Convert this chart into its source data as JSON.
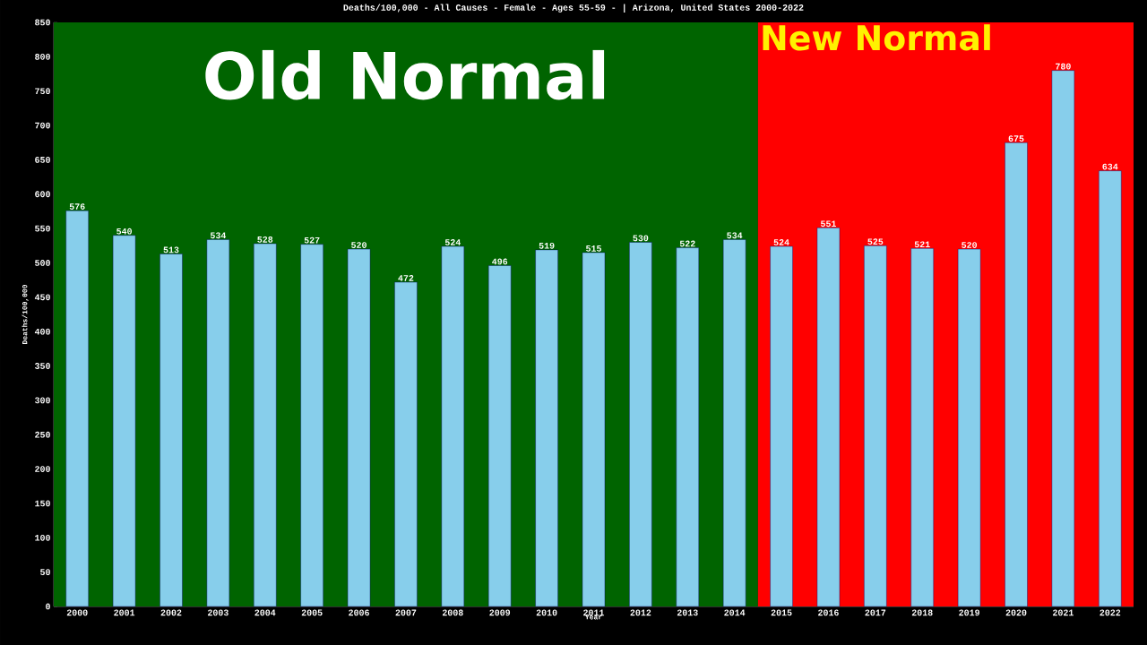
{
  "chart_data": {
    "type": "bar",
    "title": "Deaths/100,000 - All Causes - Female - Ages 55-59 -  | Arizona, United States 2000-2022",
    "xlabel": "Year",
    "ylabel": "Deaths/100,000",
    "categories": [
      "2000",
      "2001",
      "2002",
      "2003",
      "2004",
      "2005",
      "2006",
      "2007",
      "2008",
      "2009",
      "2010",
      "2011",
      "2012",
      "2013",
      "2014",
      "2015",
      "2016",
      "2017",
      "2018",
      "2019",
      "2020",
      "2021",
      "2022"
    ],
    "values": [
      576,
      540,
      513,
      534,
      528,
      527,
      520,
      472,
      524,
      496,
      519,
      515,
      530,
      522,
      534,
      524,
      551,
      525,
      521,
      520,
      675,
      780,
      634
    ],
    "color": "#87ceeb",
    "data_labels": true,
    "grid": false,
    "ylim": [
      0,
      850
    ],
    "yticks": [
      0,
      50,
      100,
      150,
      200,
      250,
      300,
      350,
      400,
      450,
      500,
      550,
      600,
      650,
      700,
      750,
      800,
      850
    ],
    "bands": [
      {
        "axis": "x",
        "from": "2000",
        "to": "2014",
        "label": "Old Normal",
        "color": "#006400"
      },
      {
        "axis": "x",
        "from": "2015",
        "to": "2022",
        "label": "New Normal",
        "color": "#ff0000"
      }
    ]
  }
}
